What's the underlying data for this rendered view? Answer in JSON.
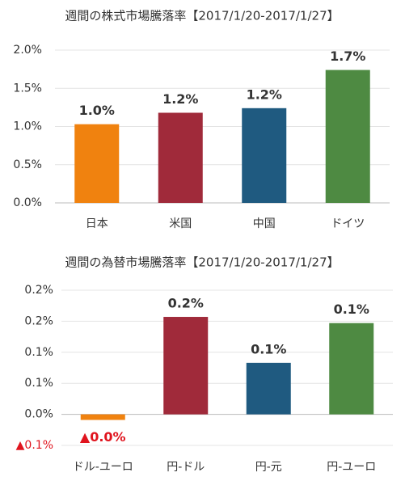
{
  "chart_data": [
    {
      "type": "bar",
      "title": "週間の株式市場騰落率【2017/1/20-2017/1/27】",
      "categories": [
        "日本",
        "米国",
        "中国",
        "ドイツ"
      ],
      "values": [
        1.03,
        1.18,
        1.24,
        1.74
      ],
      "value_labels": [
        "1.0%",
        "1.2%",
        "1.2%",
        "1.7%"
      ],
      "colors": [
        "#f0820f",
        "#a02a3a",
        "#1f5a80",
        "#4e8a42"
      ],
      "ylim": [
        0,
        2.0
      ],
      "yticks": [
        {
          "value": 0,
          "label": "0.0%"
        },
        {
          "value": 0.5,
          "label": "0.5%"
        },
        {
          "value": 1.0,
          "label": "1.0%"
        },
        {
          "value": 1.5,
          "label": "1.5%"
        },
        {
          "value": 2.0,
          "label": "2.0%"
        }
      ],
      "grid": true
    },
    {
      "type": "bar",
      "title": "週間の為替市場騰落率【2017/1/20-2017/1/27】",
      "categories": [
        "ドル-ユーロ",
        "円-ドル",
        "円-元",
        "円-ユーロ"
      ],
      "values": [
        -0.009,
        0.157,
        0.083,
        0.147
      ],
      "value_labels": [
        "▲0.0%",
        "0.2%",
        "0.1%",
        "0.1%"
      ],
      "colors": [
        "#f0820f",
        "#a02a3a",
        "#1f5a80",
        "#4e8a42"
      ],
      "ylim": [
        -0.05,
        0.2
      ],
      "yticks": [
        {
          "value": -0.05,
          "label": "▲0.1%"
        },
        {
          "value": 0,
          "label": "0.0%"
        },
        {
          "value": 0.05,
          "label": "0.1%"
        },
        {
          "value": 0.1,
          "label": "0.1%"
        },
        {
          "value": 0.15,
          "label": "0.2%"
        },
        {
          "value": 0.2,
          "label": "0.2%"
        }
      ],
      "grid": true
    }
  ]
}
